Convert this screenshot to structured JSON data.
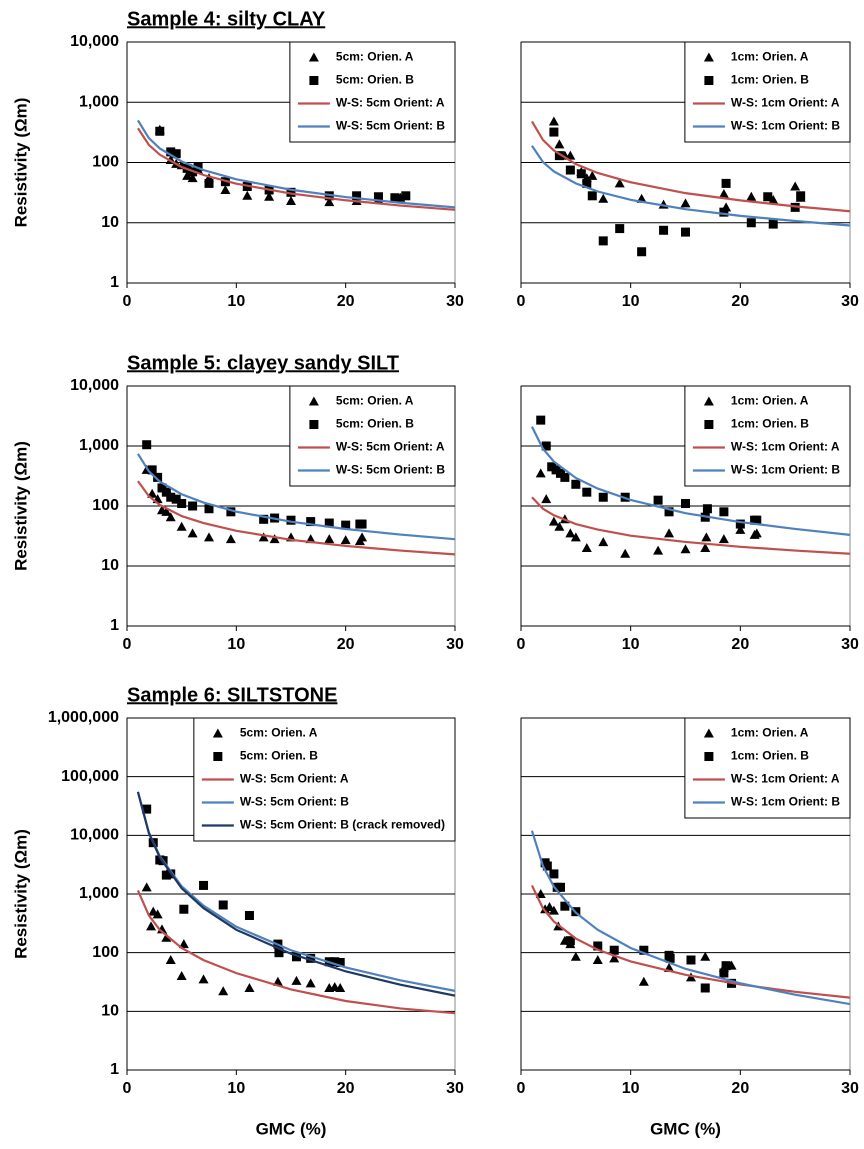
{
  "chart_data": [
    {
      "type": "scatter",
      "title": "Sample 4: silty CLAY",
      "ylabel": "Resistivity (Ωm)",
      "log_scale": true,
      "grid": true,
      "legend_loc": "upper right",
      "xlim": [
        0,
        30
      ],
      "xticks": [
        0,
        10,
        20,
        30
      ],
      "ylim": [
        1,
        10000
      ],
      "yticks": [
        1,
        10,
        100,
        {
          "value": 1000,
          "label": "1,000"
        },
        {
          "value": 10000,
          "label": "10,000"
        }
      ],
      "series": [
        {
          "name": "5cm: Orien. A",
          "marker": "triangle",
          "color": "#000000",
          "x": [
            3,
            4,
            4.5,
            5,
            5.5,
            6,
            6.5,
            7.5,
            9,
            11,
            13,
            15,
            18.5,
            21,
            23,
            25
          ],
          "values": [
            350,
            110,
            95,
            90,
            60,
            55,
            75,
            55,
            35,
            28,
            27,
            23,
            22,
            23,
            24,
            26
          ]
        },
        {
          "name": "5cm: Orien. B",
          "marker": "square",
          "color": "#000000",
          "x": [
            3,
            4,
            4.5,
            5.5,
            6,
            6.5,
            7.5,
            9,
            11,
            13,
            15,
            18.5,
            21,
            23,
            24.5,
            25.5
          ],
          "values": [
            330,
            150,
            140,
            80,
            70,
            85,
            45,
            48,
            40,
            35,
            32,
            28,
            28,
            27,
            26,
            28
          ]
        },
        {
          "name": "W-S: 5cm Orient: A",
          "marker": "line",
          "color": "#c0504d",
          "x": [
            1,
            2,
            3,
            5,
            7,
            10,
            15,
            20,
            25,
            30
          ],
          "values": [
            370,
            196,
            135,
            84,
            62,
            44.5,
            30.5,
            23.6,
            19.3,
            16.4
          ]
        },
        {
          "name": "W-S: 5cm Orient: B",
          "marker": "line",
          "color": "#4f81bd",
          "x": [
            1,
            2,
            3,
            5,
            7,
            10,
            15,
            20,
            25,
            30
          ],
          "values": [
            500,
            254,
            171,
            104,
            75,
            52.6,
            35.3,
            26.7,
            21.5,
            18
          ]
        }
      ]
    },
    {
      "type": "scatter",
      "log_scale": true,
      "grid": true,
      "legend_loc": "upper right",
      "xlim": [
        0,
        30
      ],
      "xticks": [
        0,
        10,
        20,
        30
      ],
      "ylim": [
        1,
        10000
      ],
      "yticks": [
        1,
        10,
        100,
        1000,
        10000
      ],
      "series": [
        {
          "name": "1cm: Orien. A",
          "marker": "triangle",
          "color": "#000000",
          "x": [
            3,
            3.5,
            4,
            4.5,
            5.5,
            6,
            6.5,
            7.5,
            9,
            11,
            13,
            15,
            18.5,
            18.7,
            21,
            23,
            25,
            25.5
          ],
          "values": [
            480,
            200,
            130,
            130,
            70,
            55,
            60,
            25,
            45,
            25,
            20,
            21,
            30,
            18,
            27,
            24,
            40,
            26
          ]
        },
        {
          "name": "1cm: Orien. B",
          "marker": "square",
          "color": "#000000",
          "x": [
            3,
            3.5,
            4.5,
            5.5,
            6,
            6.5,
            7.5,
            9,
            11,
            13,
            15,
            18.5,
            18.7,
            21,
            22.5,
            23,
            25,
            25.5
          ],
          "values": [
            320,
            130,
            75,
            65,
            45,
            28,
            5,
            8,
            3.3,
            7.5,
            7,
            15,
            45,
            10,
            27,
            9.5,
            18,
            28
          ]
        },
        {
          "name": "W-S: 1cm Orient: A",
          "marker": "line",
          "color": "#c0504d",
          "x": [
            1,
            2,
            3,
            5,
            7,
            10,
            15,
            20,
            25,
            30
          ],
          "values": [
            480,
            237,
            158,
            94,
            67,
            47,
            31,
            23.5,
            18.7,
            15.5
          ]
        },
        {
          "name": "W-S: 1cm Orient: B",
          "marker": "line",
          "color": "#4f81bd",
          "x": [
            1,
            2,
            3,
            5,
            7,
            10,
            15,
            20,
            25,
            30
          ],
          "values": [
            190,
            102,
            71,
            45,
            33,
            24,
            16.8,
            13,
            10.7,
            9
          ]
        }
      ]
    },
    {
      "type": "scatter",
      "title": "Sample 5: clayey sandy SILT",
      "ylabel": "Resistivity (Ωm)",
      "log_scale": true,
      "grid": true,
      "legend_loc": "upper right",
      "xlim": [
        0,
        30
      ],
      "xticks": [
        0,
        10,
        20,
        30
      ],
      "ylim": [
        1,
        10000
      ],
      "yticks": [
        1,
        10,
        100,
        {
          "value": 1000,
          "label": "1,000"
        },
        {
          "value": 10000,
          "label": "10,000"
        }
      ],
      "series": [
        {
          "name": "5cm: Orien. A",
          "marker": "triangle",
          "color": "#000000",
          "x": [
            1.8,
            2.3,
            2.8,
            3.2,
            3.6,
            4,
            5,
            6,
            7.5,
            9.5,
            12.5,
            13.5,
            15,
            16.8,
            18.5,
            20,
            21.3,
            21.5
          ],
          "values": [
            400,
            160,
            130,
            85,
            80,
            65,
            45,
            35,
            30,
            28,
            30,
            28,
            30,
            28,
            28,
            27,
            26,
            30
          ]
        },
        {
          "name": "5cm: Orien. B",
          "marker": "square",
          "color": "#000000",
          "x": [
            1.8,
            2.3,
            2.8,
            3.2,
            3.6,
            4,
            4.5,
            5,
            6,
            7.5,
            9.5,
            12.5,
            13.5,
            15,
            16.8,
            18.5,
            20,
            21.3,
            21.5
          ],
          "values": [
            1050,
            400,
            300,
            200,
            170,
            140,
            130,
            110,
            100,
            90,
            80,
            60,
            63,
            58,
            55,
            52,
            48,
            50,
            50
          ]
        },
        {
          "name": "W-S: 5cm Orient: A",
          "marker": "line",
          "color": "#c0504d",
          "x": [
            1,
            2,
            3,
            5,
            7,
            10,
            15,
            20,
            25,
            30
          ],
          "values": [
            260,
            146,
            104,
            68,
            52,
            38.6,
            27.3,
            21.6,
            18.1,
            15.6
          ]
        },
        {
          "name": "W-S: 5cm Orient: B",
          "marker": "line",
          "color": "#4f81bd",
          "x": [
            1,
            2,
            3,
            5,
            7,
            10,
            15,
            20,
            25,
            30
          ],
          "values": [
            740,
            378,
            255,
            157,
            114,
            80.5,
            54.7,
            41.4,
            33.4,
            28
          ]
        }
      ]
    },
    {
      "type": "scatter",
      "log_scale": true,
      "grid": true,
      "legend_loc": "upper right",
      "xlim": [
        0,
        30
      ],
      "xticks": [
        0,
        10,
        20,
        30
      ],
      "ylim": [
        1,
        10000
      ],
      "yticks": [
        1,
        10,
        100,
        1000,
        10000
      ],
      "series": [
        {
          "name": "1cm: Orien. A",
          "marker": "triangle",
          "color": "#000000",
          "x": [
            1.8,
            2.3,
            3,
            3.5,
            4,
            4.5,
            5,
            6,
            7.5,
            9.5,
            12.5,
            13.5,
            15,
            16.8,
            16.9,
            18.5,
            20,
            21.3,
            21.5
          ],
          "values": [
            350,
            130,
            55,
            45,
            60,
            35,
            30,
            20,
            25,
            16,
            18,
            35,
            19,
            20,
            30,
            28,
            40,
            33,
            35
          ]
        },
        {
          "name": "1cm: Orien. B",
          "marker": "square",
          "color": "#000000",
          "x": [
            1.8,
            2.3,
            2.8,
            3.2,
            3.6,
            4,
            5,
            6,
            7.5,
            9.5,
            12.5,
            13.5,
            15,
            16.8,
            17,
            18.5,
            20,
            21.3,
            21.5
          ],
          "values": [
            2700,
            1000,
            450,
            400,
            350,
            300,
            230,
            170,
            140,
            140,
            125,
            80,
            110,
            65,
            90,
            80,
            50,
            58,
            58
          ]
        },
        {
          "name": "W-S: 1cm Orient: A",
          "marker": "line",
          "color": "#c0504d",
          "x": [
            1,
            2,
            3,
            5,
            7,
            10,
            15,
            20,
            25,
            30
          ],
          "values": [
            140,
            90,
            70,
            50,
            40.5,
            32,
            25.2,
            20.9,
            18.1,
            16
          ]
        },
        {
          "name": "W-S: 1cm Orient: B",
          "marker": "line",
          "color": "#4f81bd",
          "x": [
            1,
            2,
            3,
            5,
            7,
            10,
            15,
            20,
            25,
            30
          ],
          "values": [
            2100,
            899,
            549,
            293,
            195,
            126,
            76,
            54,
            41.5,
            33
          ]
        }
      ]
    },
    {
      "type": "scatter",
      "title": "Sample 6: SILTSTONE",
      "ylabel": "Resistivity (Ωm)",
      "xlabel": "GMC (%)",
      "log_scale": true,
      "grid": true,
      "legend_loc": "upper right",
      "xlim": [
        0,
        30
      ],
      "xticks": [
        0,
        10,
        20,
        30
      ],
      "ylim": [
        1,
        1000000
      ],
      "yticks": [
        1,
        10,
        100,
        {
          "value": 1000,
          "label": "1,000"
        },
        {
          "value": 10000,
          "label": "10,000"
        },
        {
          "value": 100000,
          "label": "100,000"
        },
        {
          "value": 1000000,
          "label": "1,000,000"
        }
      ],
      "series": [
        {
          "name": "5cm: Orien. A",
          "marker": "triangle",
          "color": "#000000",
          "x": [
            1.8,
            2.2,
            2.4,
            2.8,
            3.2,
            3.6,
            4,
            5,
            5.2,
            7,
            8.8,
            11.2,
            13.8,
            15.5,
            16.8,
            18.5,
            19,
            19.5
          ],
          "values": [
            1300,
            280,
            500,
            450,
            250,
            180,
            75,
            40,
            140,
            35,
            22,
            25,
            32,
            33,
            30,
            25,
            26,
            25
          ]
        },
        {
          "name": "5cm: Orien. B",
          "marker": "square",
          "color": "#000000",
          "x": [
            1.8,
            2.4,
            3,
            3.3,
            3.6,
            4,
            5.2,
            7,
            8.8,
            11.2,
            13.8,
            13.9,
            15.5,
            16.8,
            18.5,
            19,
            19.5
          ],
          "values": [
            28000,
            7500,
            3800,
            3700,
            2100,
            2200,
            550,
            1400,
            650,
            430,
            140,
            100,
            85,
            80,
            70,
            70,
            68
          ]
        },
        {
          "name": "W-S: 5cm Orient: A",
          "marker": "line",
          "color": "#c0504d",
          "x": [
            1,
            2,
            3,
            5,
            7,
            10,
            15,
            20,
            25,
            30
          ],
          "values": [
            1150,
            432,
            245,
            120,
            74.7,
            44.8,
            23.6,
            15,
            11.2,
            9.3
          ]
        },
        {
          "name": "W-S: 5cm Orient: B",
          "marker": "line",
          "color": "#4f81bd",
          "x": [
            1,
            2,
            3,
            5,
            7,
            10,
            15,
            20,
            25,
            30
          ],
          "values": [
            55000,
            11170,
            4400,
            1350,
            633,
            276,
            110,
            56,
            33.8,
            22.3
          ]
        },
        {
          "name": "W-S: 5cm Orient: B (crack removed)",
          "marker": "line",
          "color": "#1f3864",
          "x": [
            1,
            2,
            3,
            5,
            7,
            10,
            15,
            20,
            25,
            30
          ],
          "values": [
            55000,
            10900,
            4200,
            1250,
            575,
            245,
            96,
            48,
            28.5,
            18.5
          ]
        }
      ]
    },
    {
      "type": "scatter",
      "xlabel": "GMC (%)",
      "log_scale": true,
      "grid": true,
      "legend_loc": "upper right",
      "xlim": [
        0,
        30
      ],
      "xticks": [
        0,
        10,
        20,
        30
      ],
      "ylim": [
        1,
        1000000
      ],
      "yticks": [
        1,
        10,
        100,
        1000,
        10000,
        100000,
        1000000
      ],
      "series": [
        {
          "name": "1cm: Orien. A",
          "marker": "triangle",
          "color": "#000000",
          "x": [
            1.8,
            2.2,
            2.6,
            3,
            3.4,
            4,
            4.5,
            5,
            7,
            8.5,
            11.2,
            13.5,
            15.5,
            16.8,
            18.5,
            19.2
          ],
          "values": [
            1000,
            550,
            600,
            520,
            280,
            160,
            140,
            85,
            75,
            80,
            32,
            55,
            38,
            85,
            55,
            60
          ]
        },
        {
          "name": "1cm: Orien. B",
          "marker": "square",
          "color": "#000000",
          "x": [
            2.2,
            2.4,
            3,
            3.3,
            3.6,
            4,
            4.5,
            5,
            7,
            8.5,
            11.2,
            13.5,
            13.6,
            15.5,
            16.8,
            18.5,
            18.7,
            19.2
          ],
          "values": [
            3400,
            3000,
            2200,
            1300,
            1300,
            620,
            160,
            500,
            130,
            110,
            110,
            90,
            80,
            75,
            25,
            45,
            60,
            30
          ]
        },
        {
          "name": "W-S: 1cm Orient: A",
          "marker": "line",
          "color": "#c0504d",
          "x": [
            1,
            2,
            3,
            5,
            7,
            10,
            15,
            20,
            25,
            30
          ],
          "values": [
            1400,
            569,
            338,
            174,
            112,
            70.8,
            41.9,
            28.7,
            21.5,
            17.1
          ]
        },
        {
          "name": "W-S: 1cm Orient: B",
          "marker": "line",
          "color": "#4f81bd",
          "x": [
            1,
            2,
            3,
            5,
            7,
            10,
            15,
            20,
            25,
            30
          ],
          "values": [
            12000,
            3000,
            1333,
            480,
            245,
            120,
            53,
            30,
            19.2,
            13.3
          ]
        }
      ]
    }
  ]
}
